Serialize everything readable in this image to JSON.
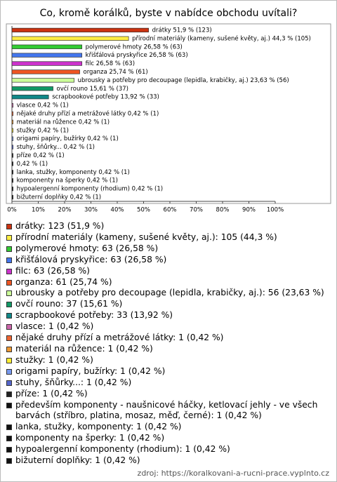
{
  "chart_data": {
    "type": "bar",
    "orientation": "horizontal",
    "title": "Co, kromě korálků, byste v nabídce obchodu uvítali?",
    "values": [
      51.9,
      44.3,
      26.58,
      26.58,
      26.58,
      25.74,
      23.63,
      15.61,
      13.92,
      0.42,
      0.42,
      0.42,
      0.42,
      0.42,
      0.42,
      0.42,
      0.42,
      0.42,
      0.42,
      0.42,
      0.42
    ],
    "value_labels": [
      "drátky 51,9 % (123)",
      "přírodní materiály (kameny, sušené květy, aj.) 44,3 % (105)",
      "polymerové hmoty 26,58 % (63)",
      "křišťálová pryskyřice 26,58 % (63)",
      "filc 26,58 % (63)",
      "organza 25,74 % (61)",
      "ubrousky a potřeby pro decoupage (lepidla, krabičky, aj.) 23,63 % (56)",
      "ovčí rouno 15,61 % (37)",
      "scrapbookové potřeby 13,92 % (33)",
      "vlasce 0,42 % (1)",
      "nějaké druhy přízí a metrážové látky 0,42 % (1)",
      "materiál na růžence 0,42 % (1)",
      "stužky 0,42 % (1)",
      "origami papíry, bužírky 0,42 % (1)",
      "stuhy, šňůrky... 0,42 % (1)",
      "příze 0,42 % (1)",
      "0,42 % (1)",
      "lanka, stužky, komponenty 0,42 % (1)",
      "komponenty na šperky 0,42 % (1)",
      "hypoalergenní komponenty (rhodium) 0,42 % (1)",
      "bižuterní doplňky 0,42 % (1)"
    ],
    "legend": [
      "drátky: 123 (51,9 %)",
      "přírodní materiály (kameny, sušené květy, aj.): 105 (44,3 %)",
      "polymerové hmoty: 63 (26,58 %)",
      "křišťálová pryskyřice: 63 (26,58 %)",
      "filc: 63 (26,58 %)",
      "organza: 61 (25,74 %)",
      "ubrousky a potřeby pro decoupage (lepidla, krabičky, aj.): 56 (23,63 %)",
      "ovčí rouno: 37 (15,61 %)",
      "scrapbookové potřeby: 33 (13,92 %)",
      "vlasce: 1 (0,42 %)",
      "nějaké druhy přízí a metrážové látky: 1 (0,42 %)",
      "materiál na růžence: 1 (0,42 %)",
      "stužky: 1 (0,42 %)",
      "origami papíry, bužírky: 1 (0,42 %)",
      "stuhy, šňůrky...: 1 (0,42 %)",
      "příze: 1 (0,42 %)",
      "především komponenty - naušnicové háčky, ketlovací jehly - ve všech barvách (stříbro, platina, mosaz, měď, černé): 1 (0,42 %)",
      "lanka, stužky, komponenty: 1 (0,42 %)",
      "komponenty na šperky: 1 (0,42 %)",
      "hypoalergenní komponenty (rhodium): 1 (0,42 %)",
      "bižuterní doplňky: 1 (0,42 %)"
    ],
    "colors": [
      "#cc3311",
      "#ffee44",
      "#33cc33",
      "#4477ee",
      "#cc33cc",
      "#ee5522",
      "#ccff99",
      "#119966",
      "#118888",
      "#cc66aa",
      "#ee6633",
      "#ee9933",
      "#ffee33",
      "#7799ee",
      "#5566cc",
      "#222222",
      "#111111",
      "#111111",
      "#111111",
      "#111111",
      "#111111"
    ],
    "xlim": [
      0,
      100
    ],
    "xticks": [
      {
        "value": 0,
        "label": "0%"
      },
      {
        "value": 10,
        "label": "10%"
      },
      {
        "value": 20,
        "label": "20%"
      },
      {
        "value": 30,
        "label": "30%"
      },
      {
        "value": 40,
        "label": "40%"
      },
      {
        "value": 50,
        "label": "50%"
      },
      {
        "value": 60,
        "label": "60%"
      },
      {
        "value": 70,
        "label": "70%"
      },
      {
        "value": 80,
        "label": "80%"
      },
      {
        "value": 90,
        "label": "90%"
      },
      {
        "value": 100,
        "label": "100%"
      }
    ]
  },
  "source": "zdroj: https://koralkovani-a-rucni-prace.vyplnto.cz"
}
